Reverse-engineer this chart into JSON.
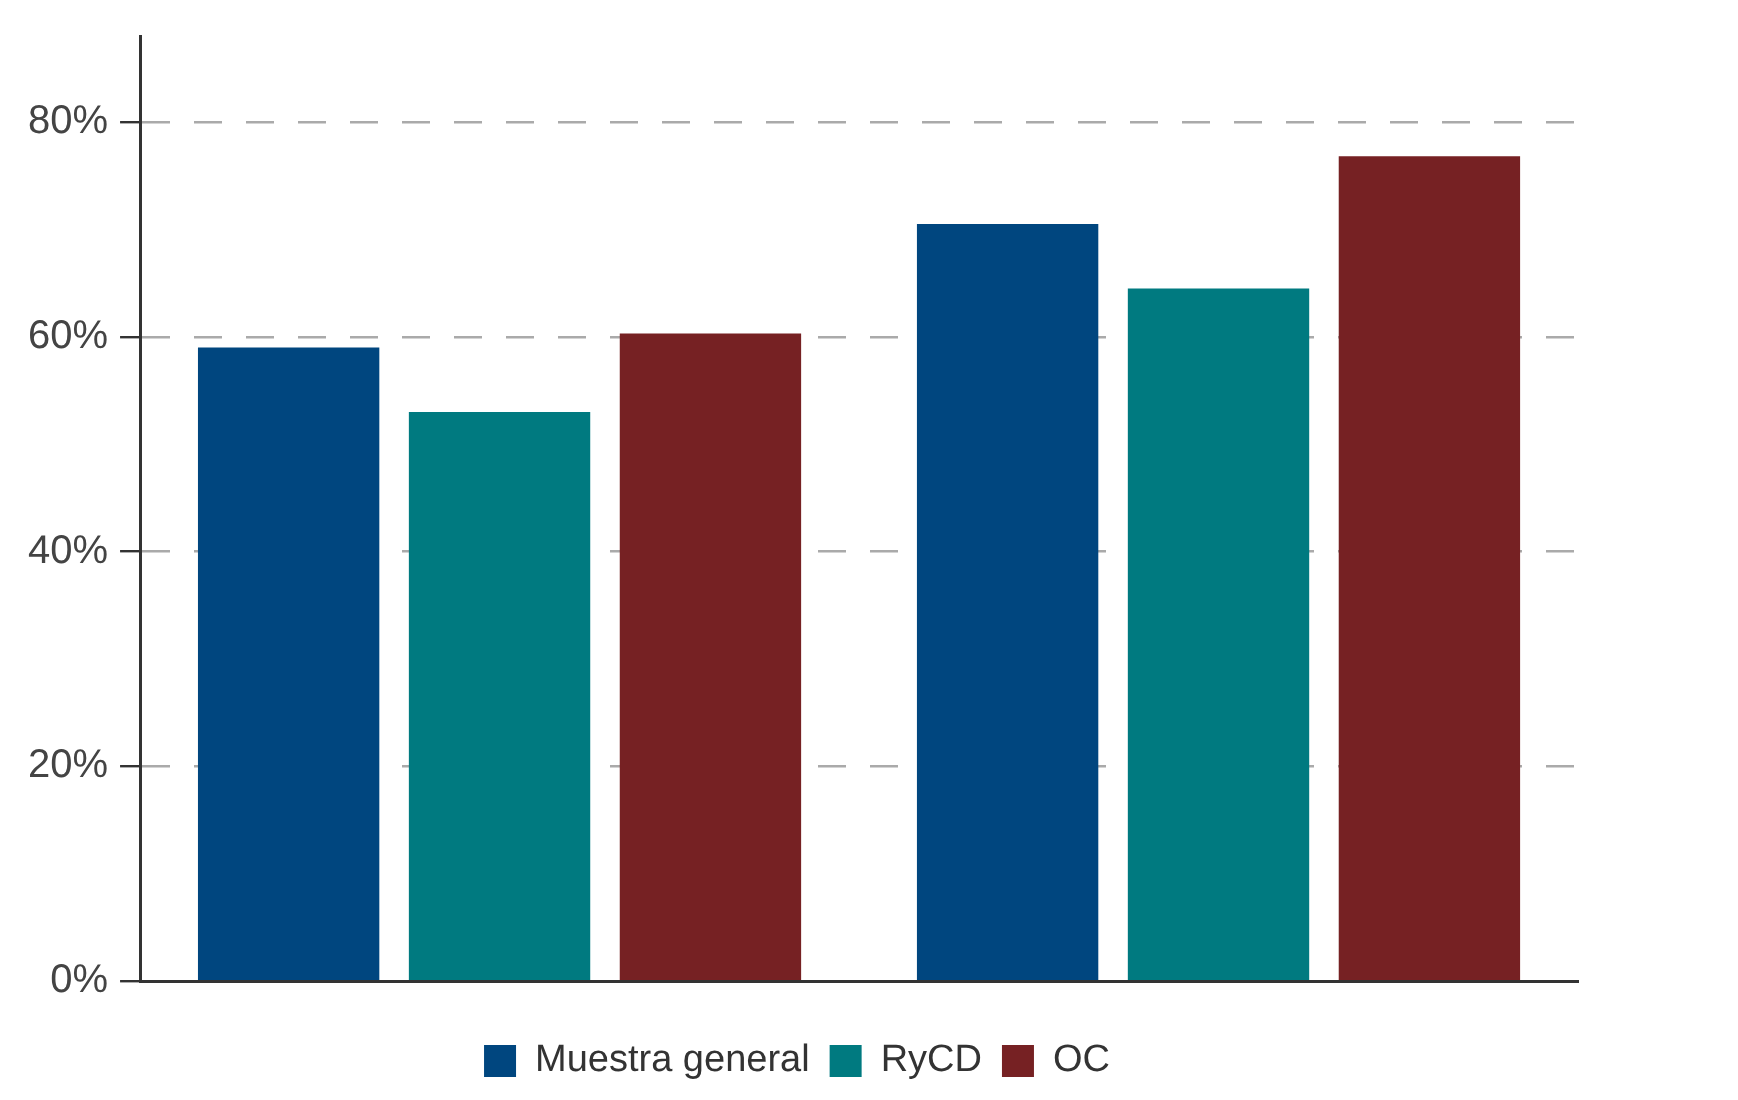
{
  "chart_data": {
    "type": "bar",
    "categories": [
      null,
      null
    ],
    "series": [
      {
        "name": "Muestra general",
        "color": "#00467f",
        "values": [
          59,
          70.5
        ]
      },
      {
        "name": "RyCD",
        "color": "#007a80",
        "values": [
          53,
          64.5
        ]
      },
      {
        "name": "OC",
        "color": "#762123",
        "values": [
          60.3,
          76.8
        ]
      }
    ],
    "ylim": [
      0,
      88
    ],
    "yticks": [
      {
        "value": 0,
        "label": "0%"
      },
      {
        "value": 20,
        "label": "20%"
      },
      {
        "value": 40,
        "label": "40%"
      },
      {
        "value": 60,
        "label": "60%"
      },
      {
        "value": 80,
        "label": "80%"
      }
    ],
    "grid": "y",
    "legend": "bottom"
  }
}
